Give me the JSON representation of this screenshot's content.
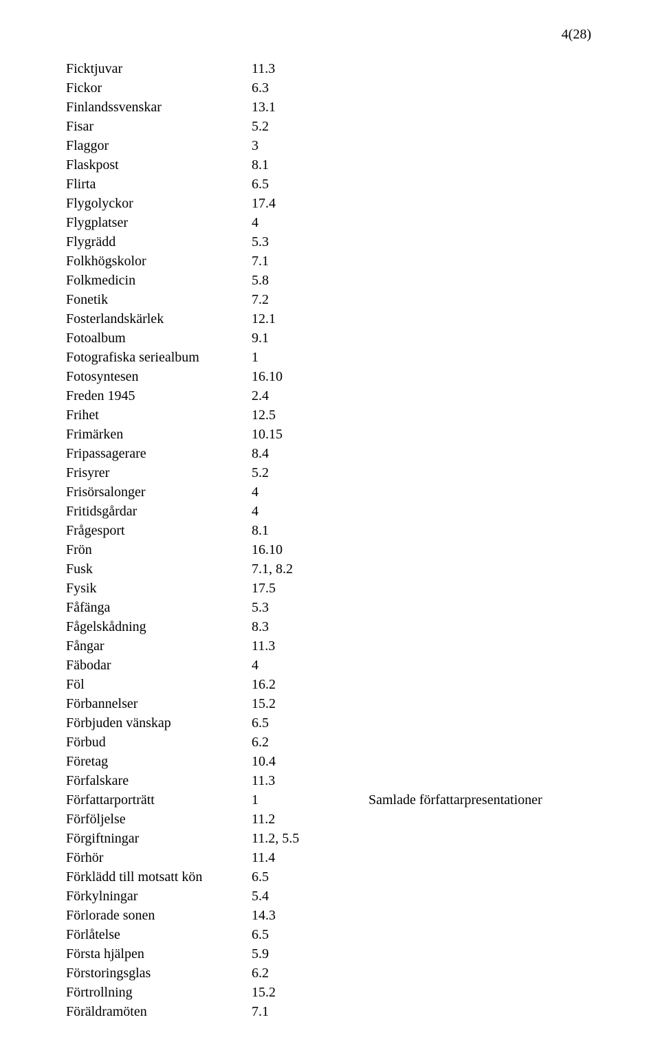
{
  "page_number": "4(28)",
  "rows": [
    {
      "label": "Ficktjuvar",
      "value": "11.3"
    },
    {
      "label": "Fickor",
      "value": "6.3"
    },
    {
      "label": "Finlandssvenskar",
      "value": "13.1"
    },
    {
      "label": "Fisar",
      "value": "5.2"
    },
    {
      "label": "Flaggor",
      "value": "3"
    },
    {
      "label": "Flaskpost",
      "value": "8.1"
    },
    {
      "label": "Flirta",
      "value": "6.5"
    },
    {
      "label": "Flygolyckor",
      "value": "17.4"
    },
    {
      "label": "Flygplatser",
      "value": "4"
    },
    {
      "label": "Flygrädd",
      "value": "5.3"
    },
    {
      "label": "Folkhögskolor",
      "value": "7.1"
    },
    {
      "label": "Folkmedicin",
      "value": "5.8"
    },
    {
      "label": "Fonetik",
      "value": "7.2"
    },
    {
      "label": "Fosterlandskärlek",
      "value": "12.1"
    },
    {
      "label": "Fotoalbum",
      "value": "9.1"
    },
    {
      "label": "Fotografiska seriealbum",
      "value": "1"
    },
    {
      "label": "Fotosyntesen",
      "value": "16.10"
    },
    {
      "label": "Freden 1945",
      "value": "2.4"
    },
    {
      "label": "Frihet",
      "value": "12.5"
    },
    {
      "label": "Frimärken",
      "value": "10.15"
    },
    {
      "label": "Fripassagerare",
      "value": "8.4"
    },
    {
      "label": "Frisyrer",
      "value": "5.2"
    },
    {
      "label": "Frisörsalonger",
      "value": "4"
    },
    {
      "label": "Fritidsgårdar",
      "value": "4"
    },
    {
      "label": "Frågesport",
      "value": "8.1"
    },
    {
      "label": "Frön",
      "value": "16.10"
    },
    {
      "label": "Fusk",
      "value": "7.1, 8.2"
    },
    {
      "label": "Fysik",
      "value": "17.5"
    },
    {
      "label": "Fåfänga",
      "value": "5.3"
    },
    {
      "label": "Fågelskådning",
      "value": "8.3"
    },
    {
      "label": "Fångar",
      "value": "11.3"
    },
    {
      "label": "Fäbodar",
      "value": "4"
    },
    {
      "label": "Föl",
      "value": "16.2"
    },
    {
      "label": "Förbannelser",
      "value": "15.2"
    },
    {
      "label": "Förbjuden vänskap",
      "value": "6.5"
    },
    {
      "label": "Förbud",
      "value": "6.2"
    },
    {
      "label": "Företag",
      "value": "10.4"
    },
    {
      "label": "Förfalskare",
      "value": "11.3"
    },
    {
      "label": "Författarporträtt",
      "value": "1",
      "note": "Samlade författarpresentationer"
    },
    {
      "label": "Förföljelse",
      "value": "11.2"
    },
    {
      "label": "Förgiftningar",
      "value": "11.2, 5.5"
    },
    {
      "label": "Förhör",
      "value": "11.4"
    },
    {
      "label": "Förklädd till motsatt kön",
      "value": "6.5"
    },
    {
      "label": "Förkylningar",
      "value": "5.4"
    },
    {
      "label": "Förlorade sonen",
      "value": "14.3"
    },
    {
      "label": "Förlåtelse",
      "value": "6.5"
    },
    {
      "label": "Första hjälpen",
      "value": "5.9"
    },
    {
      "label": "Förstoringsglas",
      "value": "6.2"
    },
    {
      "label": "Förtrollning",
      "value": "15.2"
    },
    {
      "label": "Föräldramöten",
      "value": "7.1"
    }
  ]
}
